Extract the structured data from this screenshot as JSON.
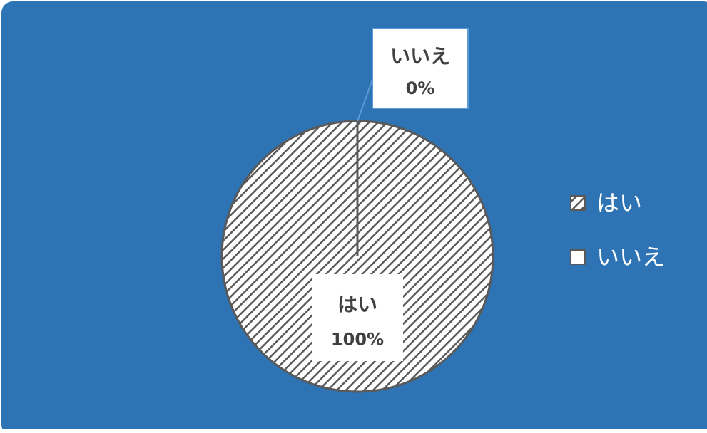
{
  "colors": {
    "background": "#2e74b5",
    "slice_stroke": "#595959",
    "hatch": "#595959",
    "label_box": "#ffffff",
    "label_box_border": "#5b9bd5",
    "legend_text": "#ffffff"
  },
  "chart_data": {
    "type": "pie",
    "title": "",
    "categories": [
      "はい",
      "いいえ"
    ],
    "values": [
      100,
      0
    ],
    "data_labels": [
      {
        "name": "はい",
        "value": "100%"
      },
      {
        "name": "いいえ",
        "value": "0%"
      }
    ],
    "legend": {
      "position": "right",
      "entries": [
        "はい",
        "いいえ"
      ]
    },
    "slice_styles": [
      "diagonal-hatch",
      "solid-white"
    ]
  }
}
